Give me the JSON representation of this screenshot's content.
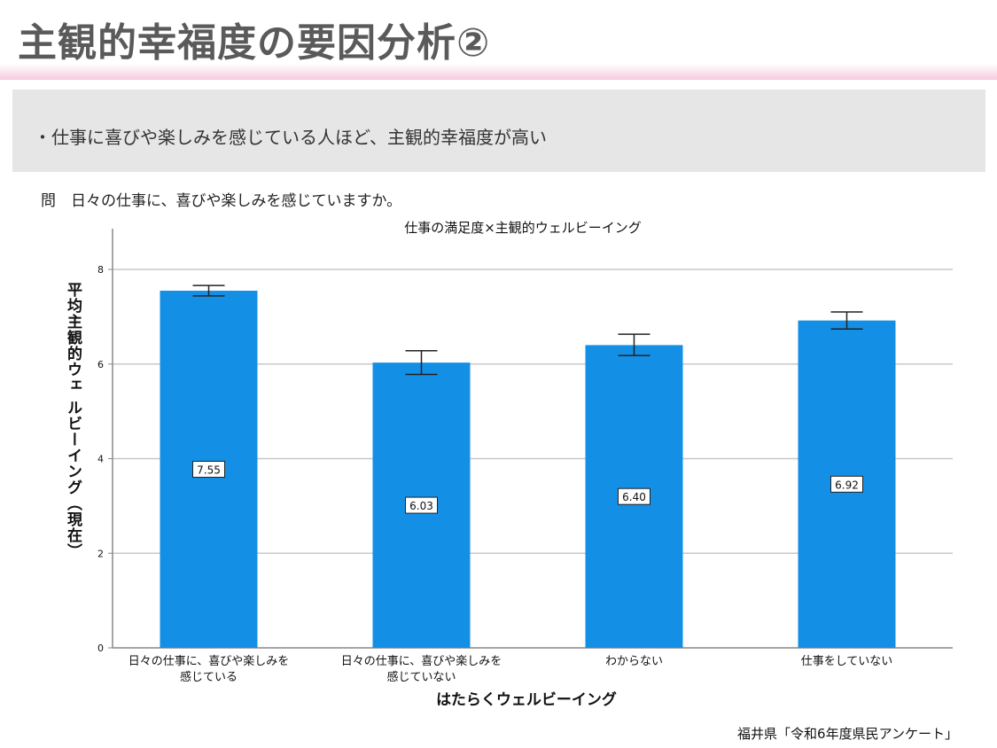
{
  "header": {
    "title": "主観的幸福度の要因分析②"
  },
  "summary": {
    "text": "・仕事に喜びや楽しみを感じている人ほど、主観的幸福度が高い"
  },
  "question": {
    "text": "問　日々の仕事に、喜びや楽しみを感じていますか。"
  },
  "source": {
    "text": "福井県「令和6年度県民アンケート」"
  },
  "colors": {
    "bar": "#1390e6",
    "grid": "#c8c8c8"
  },
  "chart_data": {
    "type": "bar",
    "title": "仕事の満足度×主観的ウェルビーイング",
    "xlabel": "はたらくウェルビーイング",
    "ylabel": "平均主観的ウェ ルビーイング（現在）",
    "ylim": [
      0,
      8
    ],
    "yticks": [
      0,
      2,
      4,
      6,
      8
    ],
    "grid": true,
    "categories": [
      [
        "日々の仕事に、喜びや楽しみを",
        "感じている"
      ],
      [
        "日々の仕事に、喜びや楽しみを",
        "感じていない"
      ],
      [
        "わからない"
      ],
      [
        "仕事をしていない"
      ]
    ],
    "values": [
      7.55,
      6.03,
      6.4,
      6.92
    ],
    "labels": [
      "7.55",
      "6.03",
      "6.40",
      "6.92"
    ],
    "error_low": [
      7.44,
      5.78,
      6.18,
      6.74
    ],
    "error_high": [
      7.66,
      6.28,
      6.63,
      7.1
    ]
  }
}
